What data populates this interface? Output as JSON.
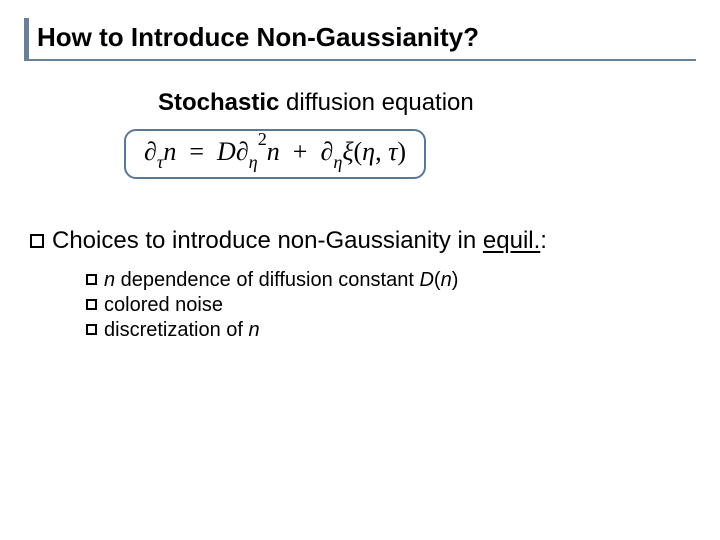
{
  "title": "How to Introduce Non-Gaussianity?",
  "subtitle_bold": "Stochastic",
  "subtitle_rest": " diffusion equation",
  "choices_intro": "Choices to introduce non-Gaussianity in ",
  "choices_underline": "equil.",
  "choices_tail": ":",
  "bullets": [
    {
      "pre": "",
      "it1": "n",
      "mid": " dependence of diffusion constant ",
      "it2": "D",
      "paren_open": "(",
      "it3": "n",
      "paren_close": ")"
    },
    {
      "pre": "colored noise",
      "it1": "",
      "mid": "",
      "it2": "",
      "paren_open": "",
      "it3": "",
      "paren_close": ""
    },
    {
      "pre": "discretization of ",
      "it1": "n",
      "mid": "",
      "it2": "",
      "paren_open": "",
      "it3": "",
      "paren_close": ""
    }
  ],
  "colors": {
    "rule": "#6a8098",
    "box_border": "#5b7791",
    "text": "#000000",
    "bg": "#ffffff"
  },
  "fontsize": {
    "title": 26,
    "subtitle": 24,
    "equation": 26,
    "level1": 24,
    "level2": 20
  }
}
